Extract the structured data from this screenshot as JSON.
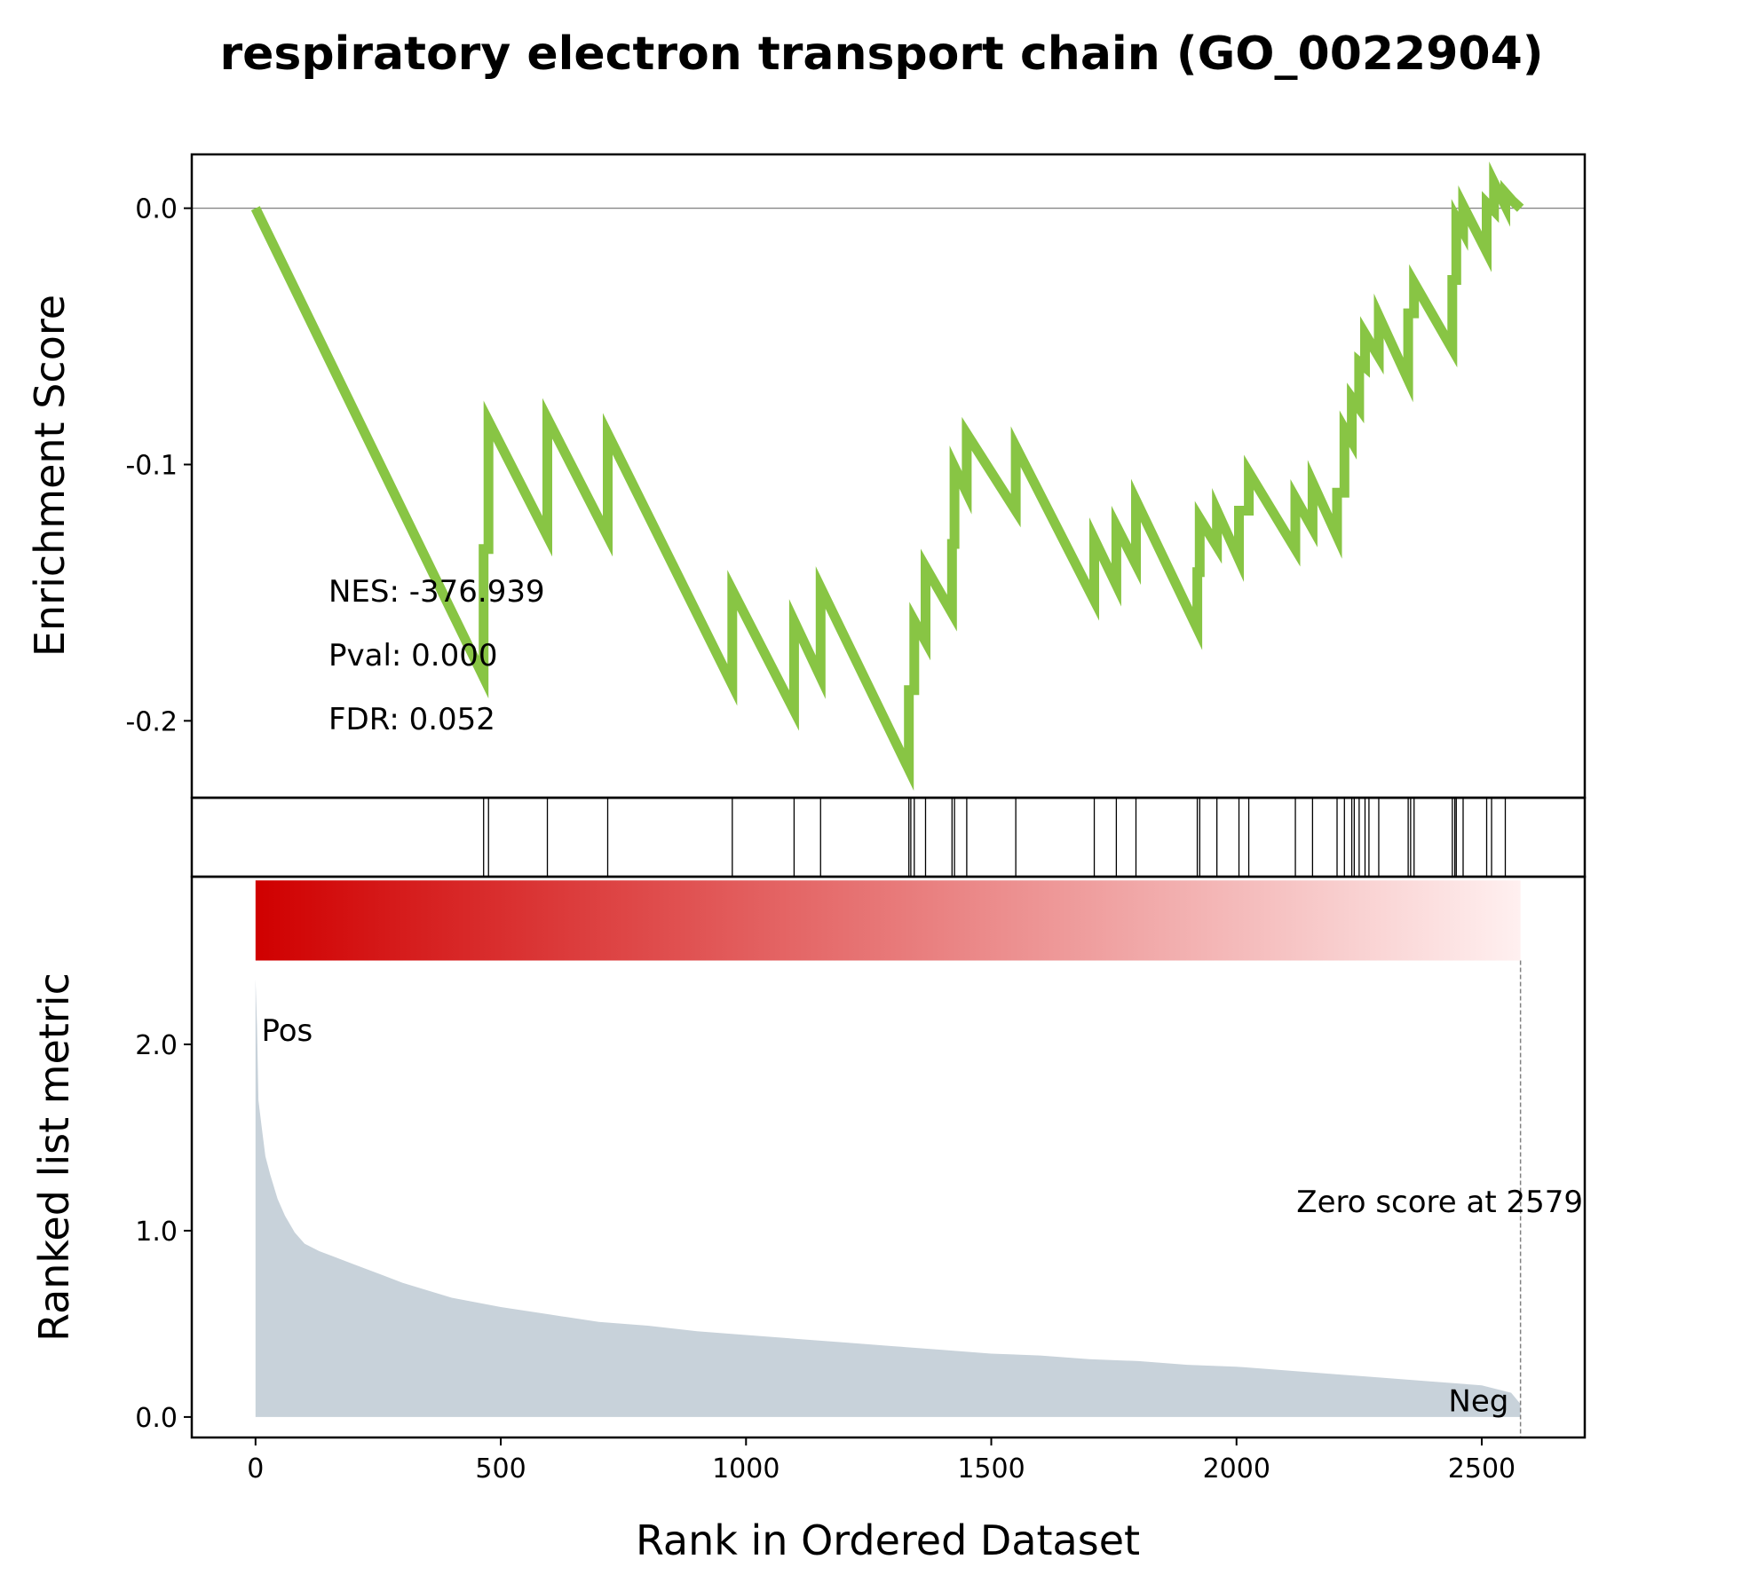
{
  "chart_data": {
    "type": "line",
    "title": "respiratory electron transport chain (GO_0022904)",
    "stats": {
      "nes": "NES: -376.939",
      "pval": "Pval: 0.000",
      "fdr": "FDR: 0.052"
    },
    "es_panel": {
      "ylabel": "Enrichment Score",
      "ylim": [
        -0.23,
        0.021
      ],
      "yticks": [
        {
          "value": 0.0,
          "label": "0.0"
        },
        {
          "value": -0.1,
          "label": "-0.1"
        },
        {
          "value": -0.2,
          "label": "-0.2"
        }
      ],
      "line_color": "#88c544",
      "points": [
        [
          0,
          0.0
        ],
        [
          465,
          -0.183
        ],
        [
          465,
          -0.133
        ],
        [
          475,
          -0.133
        ],
        [
          475,
          -0.083
        ],
        [
          595,
          -0.128
        ],
        [
          595,
          -0.082
        ],
        [
          718,
          -0.128
        ],
        [
          718,
          -0.088
        ],
        [
          972,
          -0.186
        ],
        [
          972,
          -0.149
        ],
        [
          1098,
          -0.196
        ],
        [
          1098,
          -0.161
        ],
        [
          1152,
          -0.183
        ],
        [
          1152,
          -0.148
        ],
        [
          1332,
          -0.219
        ],
        [
          1332,
          -0.188
        ],
        [
          1343,
          -0.188
        ],
        [
          1343,
          -0.161
        ],
        [
          1366,
          -0.169
        ],
        [
          1366,
          -0.14
        ],
        [
          1420,
          -0.158
        ],
        [
          1420,
          -0.131
        ],
        [
          1425,
          -0.131
        ],
        [
          1425,
          -0.101
        ],
        [
          1450,
          -0.111
        ],
        [
          1450,
          -0.088
        ],
        [
          1550,
          -0.118
        ],
        [
          1550,
          -0.093
        ],
        [
          1710,
          -0.153
        ],
        [
          1710,
          -0.129
        ],
        [
          1755,
          -0.147
        ],
        [
          1755,
          -0.124
        ],
        [
          1795,
          -0.139
        ],
        [
          1795,
          -0.114
        ],
        [
          1920,
          -0.164
        ],
        [
          1920,
          -0.142
        ],
        [
          1925,
          -0.142
        ],
        [
          1925,
          -0.121
        ],
        [
          1960,
          -0.132
        ],
        [
          1960,
          -0.118
        ],
        [
          2005,
          -0.137
        ],
        [
          2005,
          -0.118
        ],
        [
          2025,
          -0.118
        ],
        [
          2025,
          -0.103
        ],
        [
          2120,
          -0.133
        ],
        [
          2120,
          -0.113
        ],
        [
          2155,
          -0.125
        ],
        [
          2155,
          -0.107
        ],
        [
          2205,
          -0.128
        ],
        [
          2205,
          -0.111
        ],
        [
          2220,
          -0.111
        ],
        [
          2220,
          -0.086
        ],
        [
          2235,
          -0.091
        ],
        [
          2235,
          -0.074
        ],
        [
          2250,
          -0.078
        ],
        [
          2250,
          -0.06
        ],
        [
          2262,
          -0.062
        ],
        [
          2262,
          -0.049
        ],
        [
          2290,
          -0.058
        ],
        [
          2290,
          -0.042
        ],
        [
          2350,
          -0.067
        ],
        [
          2350,
          -0.041
        ],
        [
          2362,
          -0.041
        ],
        [
          2362,
          -0.029
        ],
        [
          2440,
          -0.055
        ],
        [
          2440,
          -0.028
        ],
        [
          2448,
          -0.028
        ],
        [
          2448,
          -0.004
        ],
        [
          2462,
          -0.009
        ],
        [
          2462,
          0.001
        ],
        [
          2510,
          -0.017
        ],
        [
          2510,
          0.002
        ],
        [
          2525,
          -0.001
        ],
        [
          2525,
          0.01
        ],
        [
          2548,
          0.001
        ],
        [
          2548,
          0.006
        ],
        [
          2562,
          0.003
        ],
        [
          2579,
          0.0
        ]
      ]
    },
    "hits": [
      465,
      475,
      595,
      718,
      972,
      1098,
      1152,
      1332,
      1336,
      1343,
      1366,
      1420,
      1425,
      1450,
      1550,
      1710,
      1755,
      1795,
      1920,
      1925,
      1960,
      2005,
      2025,
      2120,
      2155,
      2205,
      2220,
      2235,
      2240,
      2250,
      2262,
      2270,
      2290,
      2350,
      2355,
      2362,
      2440,
      2445,
      2448,
      2462,
      2510,
      2520,
      2548
    ],
    "ranked_panel": {
      "ylabel": "Ranked list metric",
      "xlabel": "Rank in Ordered Dataset",
      "xlim": [
        -130,
        2710
      ],
      "ylim": [
        -0.11,
        2.9
      ],
      "xticks": [
        {
          "value": 0,
          "label": "0"
        },
        {
          "value": 500,
          "label": "500"
        },
        {
          "value": 1000,
          "label": "1000"
        },
        {
          "value": 1500,
          "label": "1500"
        },
        {
          "value": 2000,
          "label": "2000"
        },
        {
          "value": 2500,
          "label": "2500"
        }
      ],
      "yticks": [
        {
          "value": 0.0,
          "label": "0.0"
        },
        {
          "value": 1.0,
          "label": "1.0"
        },
        {
          "value": 2.0,
          "label": "2.0"
        }
      ],
      "fill_color": "#c8d2da",
      "colorbar": {
        "from": "#d00000",
        "to": "#fff0f0",
        "range": [
          0,
          2579
        ],
        "ymin": 2.45,
        "ymax": 2.88
      },
      "profile": [
        [
          0,
          2.35
        ],
        [
          3,
          2.1
        ],
        [
          6,
          1.7
        ],
        [
          12,
          1.57
        ],
        [
          20,
          1.4
        ],
        [
          30,
          1.3
        ],
        [
          45,
          1.17
        ],
        [
          60,
          1.08
        ],
        [
          80,
          0.99
        ],
        [
          100,
          0.93
        ],
        [
          130,
          0.89
        ],
        [
          160,
          0.86
        ],
        [
          200,
          0.82
        ],
        [
          260,
          0.76
        ],
        [
          300,
          0.72
        ],
        [
          400,
          0.64
        ],
        [
          500,
          0.59
        ],
        [
          600,
          0.55
        ],
        [
          700,
          0.51
        ],
        [
          800,
          0.49
        ],
        [
          900,
          0.46
        ],
        [
          1000,
          0.44
        ],
        [
          1100,
          0.42
        ],
        [
          1200,
          0.4
        ],
        [
          1300,
          0.38
        ],
        [
          1400,
          0.36
        ],
        [
          1500,
          0.34
        ],
        [
          1600,
          0.33
        ],
        [
          1700,
          0.31
        ],
        [
          1800,
          0.3
        ],
        [
          1900,
          0.28
        ],
        [
          2000,
          0.27
        ],
        [
          2100,
          0.25
        ],
        [
          2200,
          0.23
        ],
        [
          2300,
          0.21
        ],
        [
          2400,
          0.19
        ],
        [
          2500,
          0.17
        ],
        [
          2560,
          0.13
        ],
        [
          2579,
          0.07
        ]
      ],
      "zero_score_at": 2579,
      "zero_label": "Zero score at 2579",
      "pos_label": "Pos",
      "pos_color": "#ff0000",
      "neg_label": "Neg",
      "neg_color": "#0000ff"
    }
  }
}
